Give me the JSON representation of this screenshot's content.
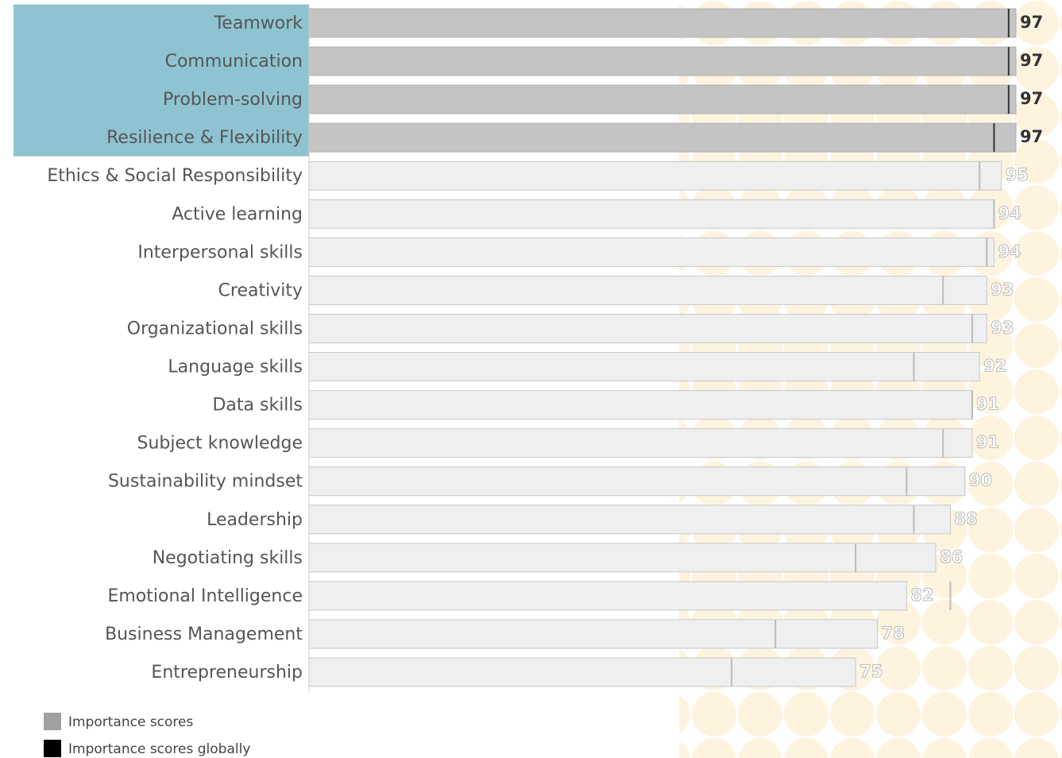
{
  "chart_data": {
    "type": "bar",
    "orientation": "horizontal",
    "categories": [
      "Teamwork",
      "Communication",
      "Problem-solving",
      "Resilience & Flexibility",
      "Ethics & Social Responsibility",
      "Active learning",
      "Interpersonal skills",
      "Creativity",
      "Organizational skills",
      "Language skills",
      "Data skills",
      "Subject knowledge",
      "Sustainability mindset",
      "Leadership",
      "Negotiating skills",
      "Emotional Intelligence",
      "Business Management",
      "Entrepreneurship"
    ],
    "series": [
      {
        "name": "Importance scores",
        "color": "#a0a0a0",
        "values": [
          97,
          97,
          97,
          97,
          95,
          94,
          94,
          93,
          93,
          92,
          91,
          91,
          90,
          88,
          86,
          82,
          78,
          75
        ]
      },
      {
        "name": "Importance scores globally",
        "color": "#000000",
        "values": [
          96,
          96,
          96,
          94,
          92,
          94,
          93,
          87,
          91,
          83,
          91,
          87,
          82,
          83,
          75,
          88,
          64,
          58
        ]
      }
    ],
    "highlight_top": 4,
    "xlim": [
      0,
      97
    ]
  }
}
